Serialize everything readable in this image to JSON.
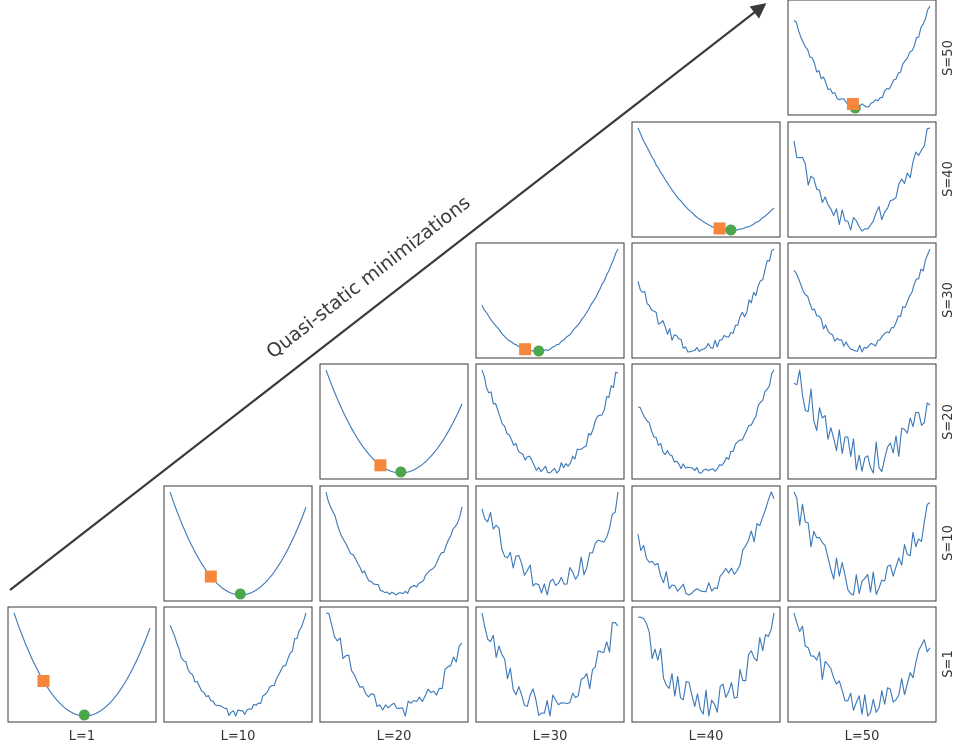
{
  "chart_data": {
    "type": "line",
    "layout": "lower-triangular grid of small panels",
    "arrow_label": "Quasi-static minimizations",
    "column_labels": [
      "L=1",
      "L=10",
      "L=20",
      "L=30",
      "L=40",
      "L=50"
    ],
    "row_labels_top_to_bottom": [
      "S=50",
      "S=40",
      "S=30",
      "S=20",
      "S=10",
      "S=1"
    ],
    "colors": {
      "curve": "#3a78b8",
      "square_marker": "#f5873c",
      "circle_marker": "#4ca64c",
      "frame": "#3a3a3a",
      "arrow": "#3a3a3a"
    },
    "panels": [
      {
        "L": "L=1",
        "S": "S=1",
        "noise": 0.0,
        "min_x": 0.52,
        "diagonal": true,
        "square_x": 0.21
      },
      {
        "L": "L=10",
        "S": "S=1",
        "noise": 0.04,
        "min_x": 0.48,
        "diagonal": false
      },
      {
        "L": "L=10",
        "S": "S=10",
        "noise": 0.0,
        "min_x": 0.52,
        "diagonal": true,
        "square_x": 0.3
      },
      {
        "L": "L=20",
        "S": "S=1",
        "noise": 0.12,
        "min_x": 0.55,
        "diagonal": false
      },
      {
        "L": "L=20",
        "S": "S=10",
        "noise": 0.03,
        "min_x": 0.52,
        "diagonal": false
      },
      {
        "L": "L=20",
        "S": "S=20",
        "noise": 0.0,
        "min_x": 0.55,
        "diagonal": true,
        "square_x": 0.4
      },
      {
        "L": "L=30",
        "S": "S=1",
        "noise": 0.16,
        "min_x": 0.5,
        "diagonal": false
      },
      {
        "L": "L=30",
        "S": "S=10",
        "noise": 0.15,
        "min_x": 0.5,
        "diagonal": false
      },
      {
        "L": "L=30",
        "S": "S=20",
        "noise": 0.05,
        "min_x": 0.5,
        "diagonal": false
      },
      {
        "L": "L=30",
        "S": "S=30",
        "noise": 0.01,
        "min_x": 0.4,
        "diagonal": true,
        "square_x": 0.31
      },
      {
        "L": "L=40",
        "S": "S=1",
        "noise": 0.16,
        "min_x": 0.5,
        "diagonal": false
      },
      {
        "L": "L=40",
        "S": "S=10",
        "noise": 0.12,
        "min_x": 0.42,
        "diagonal": false
      },
      {
        "L": "L=40",
        "S": "S=20",
        "noise": 0.05,
        "min_x": 0.45,
        "diagonal": false
      },
      {
        "L": "L=40",
        "S": "S=30",
        "noise": 0.06,
        "min_x": 0.45,
        "diagonal": false
      },
      {
        "L": "L=40",
        "S": "S=40",
        "noise": 0.01,
        "min_x": 0.68,
        "diagonal": true,
        "square_x": 0.6
      },
      {
        "L": "L=50",
        "S": "S=1",
        "noise": 0.16,
        "min_x": 0.55,
        "diagonal": false
      },
      {
        "L": "L=50",
        "S": "S=10",
        "noise": 0.18,
        "min_x": 0.52,
        "diagonal": false
      },
      {
        "L": "L=50",
        "S": "S=20",
        "noise": 0.22,
        "min_x": 0.55,
        "diagonal": false
      },
      {
        "L": "L=50",
        "S": "S=30",
        "noise": 0.05,
        "min_x": 0.47,
        "diagonal": false
      },
      {
        "L": "L=50",
        "S": "S=40",
        "noise": 0.1,
        "min_x": 0.47,
        "diagonal": false
      },
      {
        "L": "L=50",
        "S": "S=50",
        "noise": 0.04,
        "min_x": 0.48,
        "diagonal": true,
        "square_x": 0.44
      }
    ]
  }
}
